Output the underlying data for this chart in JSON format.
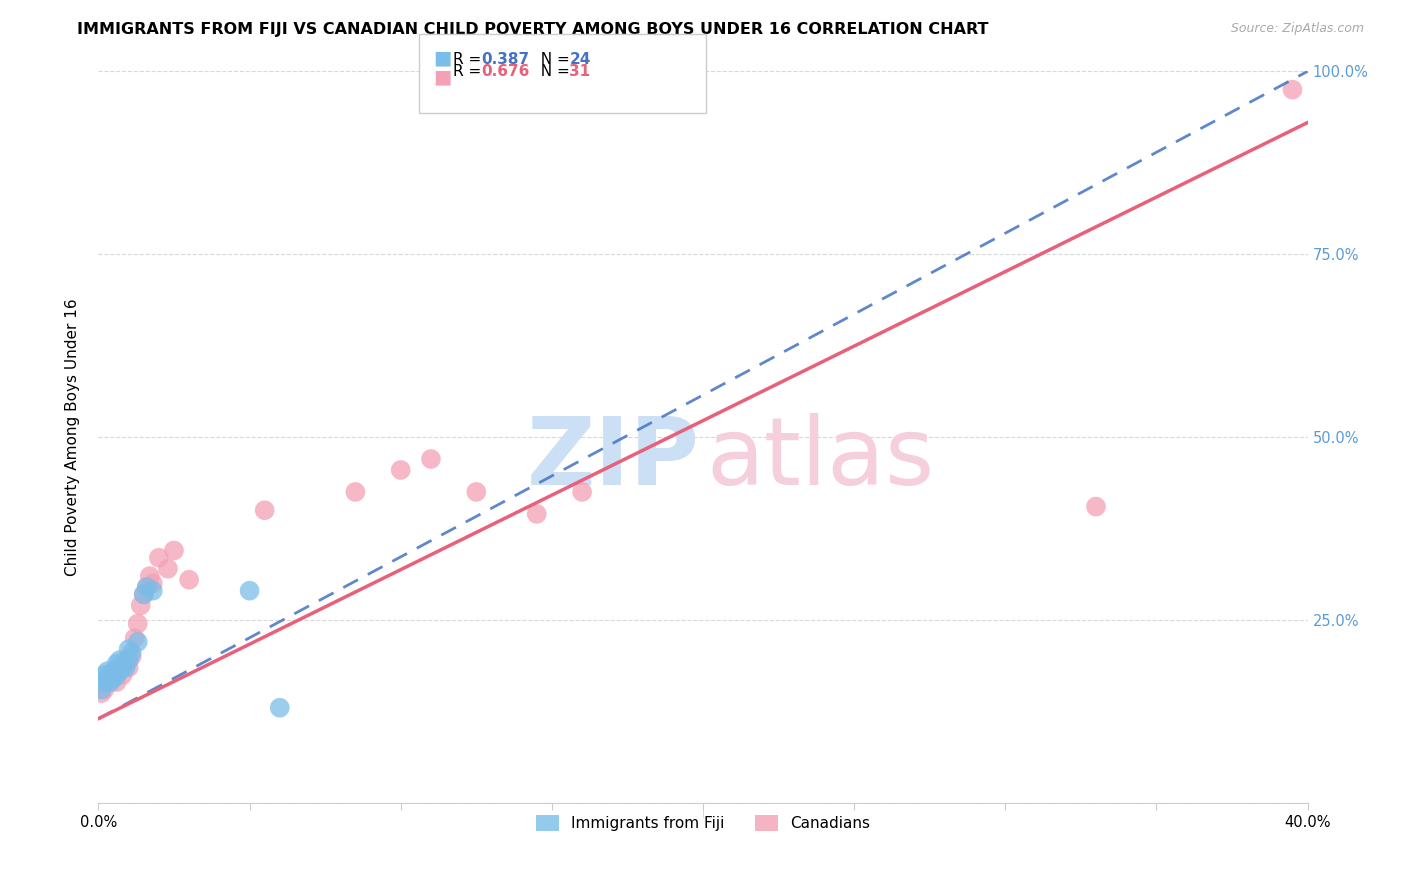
{
  "title": "IMMIGRANTS FROM FIJI VS CANADIAN CHILD POVERTY AMONG BOYS UNDER 16 CORRELATION CHART",
  "source": "Source: ZipAtlas.com",
  "ylabel": "Child Poverty Among Boys Under 16",
  "xlim": [
    0,
    0.4
  ],
  "ylim": [
    0,
    1.0
  ],
  "blue_R": 0.387,
  "blue_N": 24,
  "pink_R": 0.676,
  "pink_N": 31,
  "blue_color": "#7abde8",
  "pink_color": "#f4a0b5",
  "blue_line_color": "#4472c4",
  "pink_line_color": "#e8607a",
  "blue_scatter": [
    [
      0.001,
      0.155
    ],
    [
      0.002,
      0.165
    ],
    [
      0.002,
      0.175
    ],
    [
      0.003,
      0.17
    ],
    [
      0.003,
      0.18
    ],
    [
      0.004,
      0.165
    ],
    [
      0.004,
      0.175
    ],
    [
      0.005,
      0.17
    ],
    [
      0.005,
      0.18
    ],
    [
      0.006,
      0.175
    ],
    [
      0.006,
      0.19
    ],
    [
      0.007,
      0.18
    ],
    [
      0.007,
      0.195
    ],
    [
      0.008,
      0.185
    ],
    [
      0.009,
      0.185
    ],
    [
      0.01,
      0.195
    ],
    [
      0.01,
      0.21
    ],
    [
      0.011,
      0.205
    ],
    [
      0.013,
      0.22
    ],
    [
      0.015,
      0.285
    ],
    [
      0.016,
      0.295
    ],
    [
      0.018,
      0.29
    ],
    [
      0.05,
      0.29
    ],
    [
      0.06,
      0.13
    ]
  ],
  "pink_scatter": [
    [
      0.001,
      0.15
    ],
    [
      0.002,
      0.155
    ],
    [
      0.003,
      0.165
    ],
    [
      0.004,
      0.17
    ],
    [
      0.005,
      0.175
    ],
    [
      0.006,
      0.165
    ],
    [
      0.007,
      0.185
    ],
    [
      0.008,
      0.175
    ],
    [
      0.009,
      0.195
    ],
    [
      0.01,
      0.185
    ],
    [
      0.011,
      0.2
    ],
    [
      0.012,
      0.225
    ],
    [
      0.013,
      0.245
    ],
    [
      0.014,
      0.27
    ],
    [
      0.015,
      0.285
    ],
    [
      0.016,
      0.295
    ],
    [
      0.017,
      0.31
    ],
    [
      0.018,
      0.3
    ],
    [
      0.02,
      0.335
    ],
    [
      0.023,
      0.32
    ],
    [
      0.025,
      0.345
    ],
    [
      0.03,
      0.305
    ],
    [
      0.055,
      0.4
    ],
    [
      0.085,
      0.425
    ],
    [
      0.1,
      0.455
    ],
    [
      0.11,
      0.47
    ],
    [
      0.125,
      0.425
    ],
    [
      0.145,
      0.395
    ],
    [
      0.16,
      0.425
    ],
    [
      0.33,
      0.405
    ],
    [
      0.395,
      0.975
    ]
  ],
  "blue_line": [
    [
      0.0,
      0.115
    ],
    [
      0.4,
      1.0
    ]
  ],
  "pink_line": [
    [
      0.0,
      0.115
    ],
    [
      0.4,
      0.93
    ]
  ],
  "grid_color": "#d8d8d8",
  "bg_color": "#ffffff",
  "title_fontsize": 11.5,
  "axis_label_fontsize": 11,
  "tick_fontsize": 10.5
}
